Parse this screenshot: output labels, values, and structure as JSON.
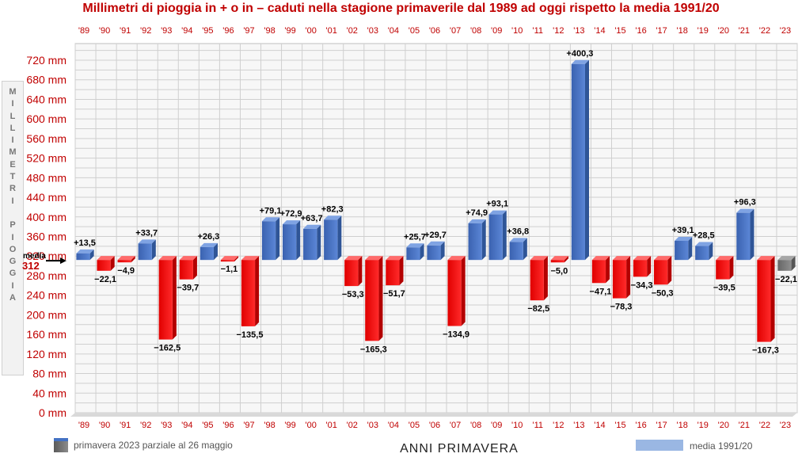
{
  "title": "Millimetri di pioggia in + o in – caduti nella stagione primaverile dal 1989 ad oggi rispetto la media 1991/20",
  "ylabel_vertical": "MILLIMETRI PIOGGIA",
  "xlabel": "ANNI  PRIMAVERA",
  "legend": {
    "partial": "primavera 2023 parziale al 26 maggio",
    "mean": "media 1991/20"
  },
  "colors": {
    "positive": "#4472c4",
    "negative": "#ff0000",
    "partial": "#7f7f7f",
    "title": "#c00000",
    "mean_marker": "#c00000"
  },
  "chart_data": {
    "type": "bar",
    "title": "Millimetri di pioggia in + o in – caduti nella stagione primaverile dal 1989 ad oggi rispetto la media 1991/20",
    "xlabel": "ANNI  PRIMAVERA",
    "ylabel": "MILLIMETRI PIOGGIA",
    "baseline": 312,
    "baseline_label": "media",
    "baseline_value_label": "312",
    "ylim": [
      0,
      720
    ],
    "ytick_labels": [
      "0 mm",
      "40 mm",
      "80 mm",
      "120 mm",
      "160 mm",
      "200 mm",
      "240 mm",
      "280 mm",
      "320 mm",
      "360 mm",
      "400 mm",
      "440 mm",
      "480 mm",
      "520 mm",
      "560 mm",
      "600 mm",
      "640 mm",
      "680 mm",
      "720 mm"
    ],
    "yticks": [
      0,
      40,
      80,
      120,
      160,
      200,
      240,
      280,
      320,
      360,
      400,
      440,
      480,
      520,
      560,
      600,
      640,
      680,
      720
    ],
    "grid": true,
    "categories": [
      "'89",
      "'90",
      "'91",
      "'92",
      "'93",
      "'94",
      "'95",
      "'96",
      "'97",
      "'98",
      "'99",
      "'00",
      "'01",
      "'02",
      "'03",
      "'04",
      "'05",
      "'06",
      "'07",
      "'08",
      "'09",
      "'10",
      "'11",
      "'12",
      "'13",
      "'14",
      "'15",
      "'16",
      "'17",
      "'18",
      "'19",
      "'20",
      "'21",
      "'22",
      "'23"
    ],
    "values": [
      13.5,
      -22.1,
      -4.9,
      33.7,
      -162.5,
      -39.7,
      26.3,
      -1.1,
      -135.5,
      79.1,
      72.9,
      63.7,
      82.3,
      -53.3,
      -165.3,
      -51.7,
      25.7,
      29.7,
      -134.9,
      74.9,
      93.1,
      36.8,
      -82.5,
      -5.0,
      400.3,
      -47.1,
      -78.3,
      -34.3,
      -50.3,
      39.1,
      28.5,
      -39.5,
      96.3,
      -167.3,
      -22.1
    ],
    "value_labels": [
      "+13,5",
      "−22,1",
      "−4,9",
      "+33,7",
      "−162,5",
      "−39,7",
      "+26,3",
      "−1,1",
      "−135,5",
      "+79,1",
      "+72,9",
      "+63,7",
      "+82,3",
      "−53,3",
      "−165,3",
      "−51,7",
      "+25,7",
      "+29,7",
      "−134,9",
      "+74,9",
      "+93,1",
      "+36,8",
      "−82,5",
      "−5,0",
      "+400,3",
      "−47,1",
      "−78,3",
      "−34,3",
      "−50,3",
      "+39,1",
      "+28,5",
      "−39,5",
      "+96,3",
      "−167,3",
      "−22,1"
    ],
    "partial_category": "'23"
  }
}
